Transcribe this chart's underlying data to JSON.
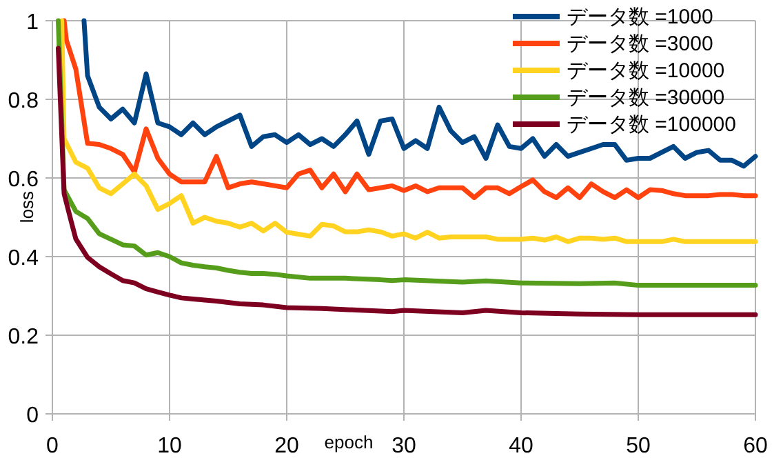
{
  "chart_data": {
    "type": "line",
    "xlabel": "epoch",
    "ylabel": "loss",
    "xlim": [
      0,
      60
    ],
    "ylim": [
      0,
      1
    ],
    "xticks": [
      0,
      10,
      20,
      30,
      40,
      50,
      60
    ],
    "yticks": [
      0,
      0.2,
      0.4,
      0.6,
      0.8,
      1
    ],
    "grid": true,
    "legend": "top right",
    "series": [
      {
        "name": "データ数 =1000",
        "color": "#004586",
        "x": [
          2.7,
          3,
          4,
          5,
          6,
          7,
          8,
          9,
          10,
          11,
          12,
          13,
          14,
          15,
          16,
          17,
          18,
          19,
          20,
          21,
          22,
          23,
          24,
          25,
          26,
          27,
          28,
          29,
          30,
          31,
          32,
          33,
          34,
          35,
          36,
          37,
          38,
          39,
          40,
          41,
          42,
          43,
          44,
          45,
          46,
          47,
          48,
          49,
          50,
          51,
          52,
          53,
          54,
          55,
          56,
          57,
          58,
          59,
          60
        ],
        "values": [
          1.0,
          0.86,
          0.78,
          0.75,
          0.775,
          0.74,
          0.865,
          0.74,
          0.73,
          0.71,
          0.74,
          0.71,
          0.73,
          0.745,
          0.76,
          0.68,
          0.705,
          0.71,
          0.69,
          0.71,
          0.685,
          0.7,
          0.68,
          0.71,
          0.745,
          0.66,
          0.745,
          0.75,
          0.675,
          0.695,
          0.675,
          0.78,
          0.72,
          0.69,
          0.705,
          0.65,
          0.735,
          0.68,
          0.675,
          0.7,
          0.655,
          0.685,
          0.655,
          0.665,
          0.675,
          0.685,
          0.685,
          0.645,
          0.65,
          0.65,
          0.665,
          0.68,
          0.65,
          0.665,
          0.67,
          0.645,
          0.645,
          0.63,
          0.655
        ]
      },
      {
        "name": "データ数 =3000",
        "color": "#ff420e",
        "x": [
          1,
          1.2,
          2,
          3,
          4,
          5,
          6,
          7,
          8,
          9,
          10,
          11,
          12,
          13,
          14,
          15,
          16,
          17,
          18,
          19,
          20,
          21,
          22,
          23,
          24,
          25,
          26,
          27,
          28,
          29,
          30,
          31,
          32,
          33,
          34,
          35,
          36,
          37,
          38,
          39,
          40,
          41,
          42,
          43,
          44,
          45,
          46,
          47,
          48,
          49,
          50,
          51,
          52,
          53,
          54,
          55,
          56,
          57,
          58,
          59,
          60
        ],
        "values": [
          1.0,
          0.95,
          0.877,
          0.688,
          0.685,
          0.675,
          0.66,
          0.615,
          0.725,
          0.65,
          0.61,
          0.59,
          0.59,
          0.59,
          0.655,
          0.575,
          0.585,
          0.59,
          0.585,
          0.58,
          0.575,
          0.61,
          0.62,
          0.575,
          0.61,
          0.565,
          0.61,
          0.57,
          0.575,
          0.58,
          0.568,
          0.58,
          0.565,
          0.575,
          0.575,
          0.575,
          0.55,
          0.575,
          0.575,
          0.56,
          0.578,
          0.595,
          0.565,
          0.55,
          0.575,
          0.55,
          0.585,
          0.565,
          0.55,
          0.57,
          0.55,
          0.57,
          0.568,
          0.56,
          0.555,
          0.555,
          0.555,
          0.558,
          0.558,
          0.555,
          0.555
        ]
      },
      {
        "name": "データ数 =10000",
        "color": "#ffd320",
        "x": [
          0.8,
          1,
          2,
          3,
          4,
          5,
          6,
          7,
          8,
          9,
          10,
          11,
          12,
          13,
          14,
          15,
          16,
          17,
          18,
          19,
          20,
          21,
          22,
          23,
          24,
          25,
          26,
          27,
          28,
          29,
          30,
          31,
          32,
          33,
          34,
          35,
          36,
          37,
          38,
          39,
          40,
          41,
          42,
          43,
          44,
          45,
          46,
          47,
          48,
          49,
          50,
          51,
          52,
          53,
          54,
          55,
          56,
          57,
          58,
          59,
          60
        ],
        "values": [
          1.0,
          0.7,
          0.64,
          0.625,
          0.575,
          0.56,
          0.585,
          0.61,
          0.58,
          0.52,
          0.535,
          0.555,
          0.485,
          0.5,
          0.49,
          0.485,
          0.475,
          0.485,
          0.465,
          0.485,
          0.462,
          0.457,
          0.452,
          0.482,
          0.478,
          0.463,
          0.463,
          0.468,
          0.463,
          0.452,
          0.458,
          0.447,
          0.462,
          0.447,
          0.45,
          0.45,
          0.45,
          0.45,
          0.444,
          0.444,
          0.444,
          0.447,
          0.442,
          0.45,
          0.438,
          0.447,
          0.447,
          0.444,
          0.447,
          0.438,
          0.438,
          0.438,
          0.438,
          0.444,
          0.438,
          0.438,
          0.438,
          0.438,
          0.438,
          0.438,
          0.438
        ]
      },
      {
        "name": "データ数 =30000",
        "color": "#579d1c",
        "x": [
          0.5,
          1,
          2,
          3,
          4,
          5,
          6,
          7,
          8,
          9,
          10,
          11,
          12,
          13,
          14,
          15,
          16,
          17,
          18,
          19,
          20,
          22,
          25,
          28,
          29,
          30,
          35,
          37,
          40,
          45,
          48,
          50,
          55,
          60
        ],
        "values": [
          1.0,
          0.57,
          0.515,
          0.497,
          0.458,
          0.444,
          0.43,
          0.427,
          0.404,
          0.41,
          0.4,
          0.384,
          0.378,
          0.374,
          0.371,
          0.365,
          0.36,
          0.357,
          0.357,
          0.355,
          0.351,
          0.345,
          0.345,
          0.341,
          0.339,
          0.341,
          0.335,
          0.338,
          0.333,
          0.331,
          0.333,
          0.327,
          0.327,
          0.327
        ]
      },
      {
        "name": "データ数 =100000",
        "color": "#7e0021",
        "x": [
          0.5,
          1,
          1.6,
          2,
          3,
          4,
          5,
          6,
          7,
          8,
          9,
          10,
          11,
          12,
          14,
          16,
          18,
          20,
          23,
          26,
          29,
          30,
          35,
          37,
          40,
          45,
          50,
          55,
          60
        ],
        "values": [
          0.93,
          0.56,
          0.49,
          0.445,
          0.398,
          0.374,
          0.356,
          0.339,
          0.333,
          0.318,
          0.31,
          0.302,
          0.295,
          0.292,
          0.287,
          0.28,
          0.277,
          0.27,
          0.268,
          0.264,
          0.26,
          0.263,
          0.257,
          0.263,
          0.257,
          0.254,
          0.252,
          0.252,
          0.252
        ]
      }
    ]
  }
}
